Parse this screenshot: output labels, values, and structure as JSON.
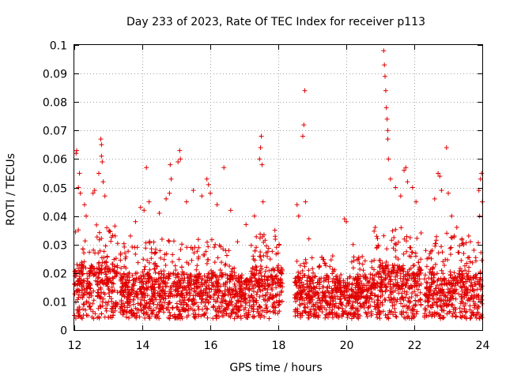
{
  "chart_data": {
    "type": "scatter",
    "title": "Day 233 of 2023, Rate Of TEC Index for receiver p113",
    "xlabel": "GPS time / hours",
    "ylabel": "ROTI / TECUs",
    "xlim": [
      12,
      24
    ],
    "ylim": [
      0,
      0.1
    ],
    "x_ticks": [
      12,
      14,
      16,
      18,
      20,
      22,
      24
    ],
    "x_tick_labels": [
      "12",
      "14",
      "16",
      "18",
      "20",
      "22",
      "24"
    ],
    "y_ticks": [
      0,
      0.01,
      0.02,
      0.03,
      0.04,
      0.05,
      0.06,
      0.07,
      0.08,
      0.09,
      0.1
    ],
    "y_tick_labels": [
      "0",
      "0.01",
      "0.02",
      "0.03",
      "0.04",
      "0.05",
      "0.06",
      "0.07",
      "0.08",
      "0.09",
      "0.1"
    ],
    "grid": true,
    "marker": "+",
    "color": "#e00000",
    "series": [
      {
        "name": "ROTI",
        "points": [
          [
            12.05,
            0.062
          ],
          [
            12.07,
            0.063
          ],
          [
            12.15,
            0.055
          ],
          [
            12.12,
            0.05
          ],
          [
            12.18,
            0.048
          ],
          [
            12.3,
            0.044
          ],
          [
            12.35,
            0.04
          ],
          [
            12.55,
            0.048
          ],
          [
            12.6,
            0.049
          ],
          [
            12.72,
            0.055
          ],
          [
            12.78,
            0.067
          ],
          [
            12.8,
            0.065
          ],
          [
            12.8,
            0.061
          ],
          [
            12.82,
            0.059
          ],
          [
            12.85,
            0.052
          ],
          [
            12.9,
            0.047
          ],
          [
            13.2,
            0.033
          ],
          [
            13.5,
            0.025
          ],
          [
            13.65,
            0.033
          ],
          [
            13.8,
            0.038
          ],
          [
            13.95,
            0.043
          ],
          [
            14.05,
            0.042
          ],
          [
            14.12,
            0.057
          ],
          [
            14.2,
            0.045
          ],
          [
            14.5,
            0.041
          ],
          [
            14.7,
            0.046
          ],
          [
            14.8,
            0.048
          ],
          [
            14.82,
            0.058
          ],
          [
            14.85,
            0.053
          ],
          [
            15.05,
            0.059
          ],
          [
            15.1,
            0.063
          ],
          [
            15.12,
            0.06
          ],
          [
            15.3,
            0.045
          ],
          [
            15.5,
            0.049
          ],
          [
            15.75,
            0.047
          ],
          [
            15.9,
            0.053
          ],
          [
            15.95,
            0.051
          ],
          [
            16.0,
            0.048
          ],
          [
            16.2,
            0.044
          ],
          [
            16.4,
            0.057
          ],
          [
            16.6,
            0.042
          ],
          [
            16.8,
            0.031
          ],
          [
            17.05,
            0.037
          ],
          [
            17.3,
            0.04
          ],
          [
            17.45,
            0.06
          ],
          [
            17.48,
            0.064
          ],
          [
            17.5,
            0.068
          ],
          [
            17.52,
            0.058
          ],
          [
            17.55,
            0.045
          ],
          [
            17.9,
            0.035
          ],
          [
            17.95,
            0.029
          ],
          [
            18.55,
            0.044
          ],
          [
            18.6,
            0.04
          ],
          [
            18.72,
            0.068
          ],
          [
            18.75,
            0.072
          ],
          [
            18.78,
            0.084
          ],
          [
            18.8,
            0.045
          ],
          [
            18.9,
            0.032
          ],
          [
            19.2,
            0.022
          ],
          [
            19.6,
            0.026
          ],
          [
            19.95,
            0.039
          ],
          [
            20.0,
            0.038
          ],
          [
            20.2,
            0.03
          ],
          [
            20.5,
            0.021
          ],
          [
            20.85,
            0.036
          ],
          [
            20.9,
            0.029
          ],
          [
            21.1,
            0.098
          ],
          [
            21.12,
            0.093
          ],
          [
            21.14,
            0.089
          ],
          [
            21.16,
            0.084
          ],
          [
            21.18,
            0.078
          ],
          [
            21.2,
            0.074
          ],
          [
            21.22,
            0.07
          ],
          [
            21.22,
            0.067
          ],
          [
            21.24,
            0.06
          ],
          [
            21.3,
            0.053
          ],
          [
            21.45,
            0.05
          ],
          [
            21.6,
            0.047
          ],
          [
            21.7,
            0.056
          ],
          [
            21.75,
            0.057
          ],
          [
            21.8,
            0.052
          ],
          [
            21.95,
            0.05
          ],
          [
            22.05,
            0.045
          ],
          [
            22.2,
            0.02
          ],
          [
            22.5,
            0.025
          ],
          [
            22.6,
            0.046
          ],
          [
            22.7,
            0.055
          ],
          [
            22.75,
            0.054
          ],
          [
            22.8,
            0.049
          ],
          [
            22.95,
            0.064
          ],
          [
            23.0,
            0.048
          ],
          [
            23.1,
            0.04
          ],
          [
            23.25,
            0.036
          ],
          [
            23.4,
            0.032
          ],
          [
            23.6,
            0.033
          ],
          [
            23.9,
            0.049
          ],
          [
            23.95,
            0.053
          ],
          [
            23.98,
            0.055
          ],
          [
            24.0,
            0.045
          ],
          [
            23.92,
            0.04
          ]
        ],
        "activity_windows": [
          {
            "start": 12.0,
            "end": 13.28,
            "baseline": 0.016,
            "upper": 0.038
          },
          {
            "start": 13.35,
            "end": 16.6,
            "baseline": 0.012,
            "upper": 0.032
          },
          {
            "start": 16.6,
            "end": 17.2,
            "baseline": 0.011,
            "upper": 0.022
          },
          {
            "start": 17.2,
            "end": 18.12,
            "baseline": 0.014,
            "upper": 0.034
          },
          {
            "start": 18.48,
            "end": 20.8,
            "baseline": 0.011,
            "upper": 0.026
          },
          {
            "start": 20.8,
            "end": 22.2,
            "baseline": 0.015,
            "upper": 0.036
          },
          {
            "start": 22.3,
            "end": 24.0,
            "baseline": 0.012,
            "upper": 0.034
          }
        ]
      }
    ]
  }
}
